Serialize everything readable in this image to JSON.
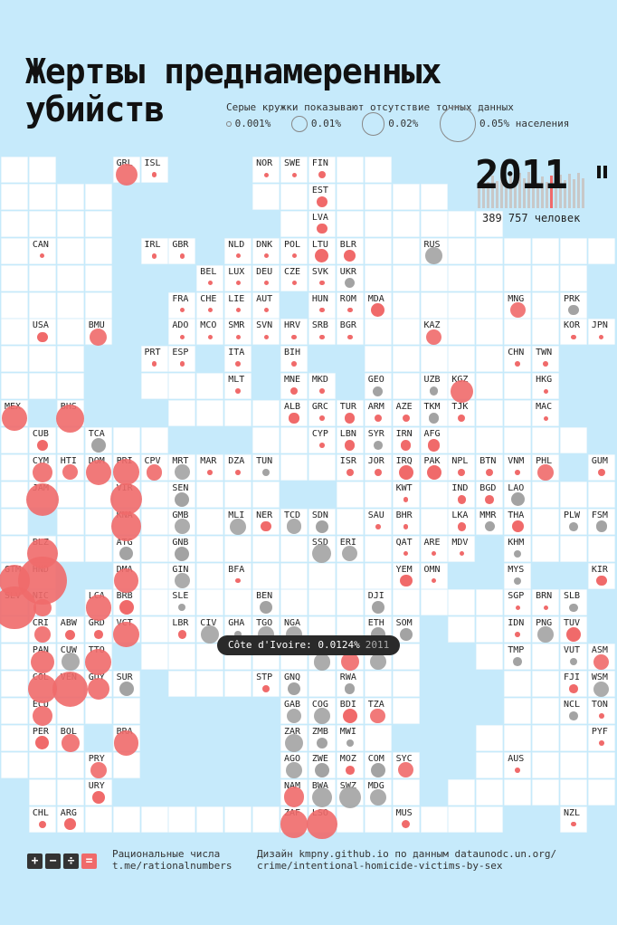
{
  "title_line1": "Жертвы преднамеренных",
  "title_line2": "убийств",
  "legend": {
    "note": "Серые кружки показывают отсутствие точных данных",
    "items": [
      {
        "label": "0.001%",
        "value": 0.001
      },
      {
        "label": "0.01%",
        "value": 0.01
      },
      {
        "label": "0.02%",
        "value": 0.02
      },
      {
        "label": "0.05% населения",
        "value": 0.05
      }
    ]
  },
  "year": "2011",
  "victims_total": "389 757 человек",
  "tooltip": {
    "text": "Côte d'Ivoire: 0.0124%",
    "year": "2011"
  },
  "footer": {
    "icons": [
      "+",
      "−",
      "÷",
      "="
    ],
    "icon_colors": [
      "#333333",
      "#333333",
      "#333333",
      "#f06a6a"
    ],
    "brand_line1": "Рациональные числа",
    "brand_line2": "t.me/rationalnumbers",
    "credit_line1": "Дизайн kmpny.github.io по данным dataunodc.un.org/",
    "credit_line2": "crime/intentional-homicide-victims-by-sex"
  },
  "colors": {
    "exact": "#f06a6a",
    "estimate": "#a3a3a3",
    "background": "#c6eafb"
  },
  "chart_data": {
    "type": "scatter",
    "unit": "% населения",
    "year": "2011",
    "countries": [
      {
        "code": "GRL",
        "v": 0.018,
        "g": false
      },
      {
        "code": "ISL",
        "v": 0.001,
        "g": false
      },
      {
        "code": "NOR",
        "v": 0.0,
        "g": false
      },
      {
        "code": "SWE",
        "v": 0.0,
        "g": false
      },
      {
        "code": "FIN",
        "v": 0.002,
        "g": false
      },
      {
        "code": "EST",
        "v": 0.005,
        "g": false
      },
      {
        "code": "LVA",
        "v": 0.004,
        "g": false
      },
      {
        "code": "CAN",
        "v": 0.0,
        "g": false
      },
      {
        "code": "IRL",
        "v": 0.001,
        "g": false
      },
      {
        "code": "GBR",
        "v": 0.001,
        "g": false
      },
      {
        "code": "NLD",
        "v": 0.0,
        "g": false
      },
      {
        "code": "DNK",
        "v": 0.0,
        "g": false
      },
      {
        "code": "POL",
        "v": 0.0,
        "g": false
      },
      {
        "code": "LTU",
        "v": 0.007,
        "g": false
      },
      {
        "code": "BLR",
        "v": 0.005,
        "g": false
      },
      {
        "code": "RUS",
        "v": 0.011,
        "g": true
      },
      {
        "code": "BEL",
        "v": 0.0,
        "g": false
      },
      {
        "code": "LUX",
        "v": 0.0,
        "g": false
      },
      {
        "code": "DEU",
        "v": 0.0,
        "g": false
      },
      {
        "code": "CZE",
        "v": 0.0,
        "g": false
      },
      {
        "code": "SVK",
        "v": 0.001,
        "g": false
      },
      {
        "code": "UKR",
        "v": 0.004,
        "g": true
      },
      {
        "code": "FRA",
        "v": 0.001,
        "g": false
      },
      {
        "code": "CHE",
        "v": 0.0,
        "g": false
      },
      {
        "code": "LIE",
        "v": 0.0,
        "g": false
      },
      {
        "code": "AUT",
        "v": 0.0,
        "g": false
      },
      {
        "code": "HUN",
        "v": 0.001,
        "g": false
      },
      {
        "code": "ROM",
        "v": 0.001,
        "g": false
      },
      {
        "code": "MDA",
        "v": 0.007,
        "g": false
      },
      {
        "code": "MNG",
        "v": 0.009,
        "g": false
      },
      {
        "code": "PRK",
        "v": 0.004,
        "g": true
      },
      {
        "code": "USA",
        "v": 0.004,
        "g": false
      },
      {
        "code": "BMU",
        "v": 0.012,
        "g": false
      },
      {
        "code": "ADO",
        "v": 0.0,
        "g": false
      },
      {
        "code": "MCO",
        "v": 0.0,
        "g": false
      },
      {
        "code": "SMR",
        "v": 0.0,
        "g": false
      },
      {
        "code": "SVN",
        "v": 0.0,
        "g": false
      },
      {
        "code": "HRV",
        "v": 0.001,
        "g": false
      },
      {
        "code": "SRB",
        "v": 0.001,
        "g": false
      },
      {
        "code": "BGR",
        "v": 0.001,
        "g": false
      },
      {
        "code": "KAZ",
        "v": 0.009,
        "g": false
      },
      {
        "code": "KOR",
        "v": 0.001,
        "g": false
      },
      {
        "code": "JPN",
        "v": 0.0,
        "g": false
      },
      {
        "code": "PRT",
        "v": 0.001,
        "g": false
      },
      {
        "code": "ESP",
        "v": 0.001,
        "g": false
      },
      {
        "code": "ITA",
        "v": 0.001,
        "g": false
      },
      {
        "code": "BIH",
        "v": 0.001,
        "g": false
      },
      {
        "code": "CHN",
        "v": 0.001,
        "g": false
      },
      {
        "code": "TWN",
        "v": 0.001,
        "g": false
      },
      {
        "code": "MLT",
        "v": 0.001,
        "g": false
      },
      {
        "code": "MNE",
        "v": 0.002,
        "g": false
      },
      {
        "code": "MKD",
        "v": 0.001,
        "g": false
      },
      {
        "code": "GEO",
        "v": 0.004,
        "g": true
      },
      {
        "code": "UZB",
        "v": 0.003,
        "g": true
      },
      {
        "code": "KGZ",
        "v": 0.02,
        "g": false
      },
      {
        "code": "HKG",
        "v": 0.0,
        "g": false
      },
      {
        "code": "MEX",
        "v": 0.024,
        "g": false
      },
      {
        "code": "BHS",
        "v": 0.03,
        "g": false
      },
      {
        "code": "ALB",
        "v": 0.004,
        "g": false
      },
      {
        "code": "GRC",
        "v": 0.001,
        "g": false
      },
      {
        "code": "TUR",
        "v": 0.004,
        "g": false
      },
      {
        "code": "ARM",
        "v": 0.002,
        "g": false
      },
      {
        "code": "AZE",
        "v": 0.002,
        "g": false
      },
      {
        "code": "TKM",
        "v": 0.004,
        "g": true
      },
      {
        "code": "TJK",
        "v": 0.002,
        "g": false
      },
      {
        "code": "MAC",
        "v": 0.0,
        "g": false
      },
      {
        "code": "CUB",
        "v": 0.005,
        "g": false
      },
      {
        "code": "TCA",
        "v": 0.008,
        "g": true
      },
      {
        "code": "CYP",
        "v": 0.001,
        "g": false
      },
      {
        "code": "LBN",
        "v": 0.004,
        "g": false
      },
      {
        "code": "SYR",
        "v": 0.003,
        "g": true
      },
      {
        "code": "IRN",
        "v": 0.004,
        "g": false
      },
      {
        "code": "AFG",
        "v": 0.006,
        "g": false
      },
      {
        "code": "CYM",
        "v": 0.015,
        "g": false
      },
      {
        "code": "HTI",
        "v": 0.009,
        "g": false
      },
      {
        "code": "DOM",
        "v": 0.025,
        "g": false
      },
      {
        "code": "PRI",
        "v": 0.026,
        "g": false
      },
      {
        "code": "CPV",
        "v": 0.01,
        "g": false
      },
      {
        "code": "MRT",
        "v": 0.009,
        "g": true
      },
      {
        "code": "MAR",
        "v": 0.001,
        "g": false
      },
      {
        "code": "DZA",
        "v": 0.001,
        "g": false
      },
      {
        "code": "TUN",
        "v": 0.002,
        "g": true
      },
      {
        "code": "ISR",
        "v": 0.002,
        "g": false
      },
      {
        "code": "JOR",
        "v": 0.002,
        "g": false
      },
      {
        "code": "IRQ",
        "v": 0.008,
        "g": false
      },
      {
        "code": "PAK",
        "v": 0.008,
        "g": false
      },
      {
        "code": "NPL",
        "v": 0.002,
        "g": false
      },
      {
        "code": "BTN",
        "v": 0.002,
        "g": false
      },
      {
        "code": "VNM",
        "v": 0.001,
        "g": false
      },
      {
        "code": "PHL",
        "v": 0.01,
        "g": false
      },
      {
        "code": "GUM",
        "v": 0.002,
        "g": false
      },
      {
        "code": "JAM",
        "v": 0.041,
        "g": false
      },
      {
        "code": "VIR",
        "v": 0.039,
        "g": false
      },
      {
        "code": "SEN",
        "v": 0.008,
        "g": true
      },
      {
        "code": "KWT",
        "v": 0.001,
        "g": false
      },
      {
        "code": "LAO",
        "v": 0.007,
        "g": true
      },
      {
        "code": "IND",
        "v": 0.003,
        "g": false
      },
      {
        "code": "BGD",
        "v": 0.003,
        "g": false
      },
      {
        "code": "KNA",
        "v": 0.034,
        "g": false
      },
      {
        "code": "GMB",
        "v": 0.009,
        "g": true
      },
      {
        "code": "MLI",
        "v": 0.01,
        "g": true
      },
      {
        "code": "NER",
        "v": 0.004,
        "g": false
      },
      {
        "code": "TCD",
        "v": 0.009,
        "g": true
      },
      {
        "code": "SDN",
        "v": 0.006,
        "g": true
      },
      {
        "code": "SAU",
        "v": 0.001,
        "g": false
      },
      {
        "code": "BHR",
        "v": 0.001,
        "g": false
      },
      {
        "code": "LKA",
        "v": 0.003,
        "g": false
      },
      {
        "code": "MMR",
        "v": 0.004,
        "g": true
      },
      {
        "code": "THA",
        "v": 0.005,
        "g": false
      },
      {
        "code": "PLW",
        "v": 0.003,
        "g": true
      },
      {
        "code": "FSM",
        "v": 0.005,
        "g": true
      },
      {
        "code": "BLZ",
        "v": 0.035,
        "g": false
      },
      {
        "code": "ATG",
        "v": 0.007,
        "g": true
      },
      {
        "code": "GNB",
        "v": 0.008,
        "g": true
      },
      {
        "code": "SSD",
        "v": 0.014,
        "g": true
      },
      {
        "code": "ERI",
        "v": 0.009,
        "g": true
      },
      {
        "code": "QAT",
        "v": 0.0,
        "g": false
      },
      {
        "code": "ARE",
        "v": 0.001,
        "g": false
      },
      {
        "code": "MDV",
        "v": 0.001,
        "g": false
      },
      {
        "code": "KHM",
        "v": 0.002,
        "g": true
      },
      {
        "code": "GTM",
        "v": 0.038,
        "g": false
      },
      {
        "code": "HND",
        "v": 0.09,
        "g": false
      },
      {
        "code": "DMA",
        "v": 0.022,
        "g": false
      },
      {
        "code": "GIN",
        "v": 0.009,
        "g": true
      },
      {
        "code": "BFA",
        "v": 0.001,
        "g": false
      },
      {
        "code": "YEM",
        "v": 0.006,
        "g": false
      },
      {
        "code": "OMN",
        "v": 0.001,
        "g": false
      },
      {
        "code": "MYS",
        "v": 0.002,
        "g": true
      },
      {
        "code": "KIR",
        "v": 0.004,
        "g": false
      },
      {
        "code": "SLV",
        "v": 0.07,
        "g": false
      },
      {
        "code": "NIC",
        "v": 0.012,
        "g": false
      },
      {
        "code": "LCA",
        "v": 0.025,
        "g": false
      },
      {
        "code": "BRB",
        "v": 0.008,
        "g": false
      },
      {
        "code": "SLE",
        "v": 0.002,
        "g": true
      },
      {
        "code": "BEN",
        "v": 0.006,
        "g": true
      },
      {
        "code": "DJI",
        "v": 0.006,
        "g": true
      },
      {
        "code": "SGP",
        "v": 0.0,
        "g": false
      },
      {
        "code": "BRN",
        "v": 0.0,
        "g": false
      },
      {
        "code": "SLB",
        "v": 0.003,
        "g": true
      },
      {
        "code": "CRI",
        "v": 0.01,
        "g": false
      },
      {
        "code": "ABW",
        "v": 0.004,
        "g": false
      },
      {
        "code": "GRD",
        "v": 0.003,
        "g": false
      },
      {
        "code": "VCT",
        "v": 0.025,
        "g": false
      },
      {
        "code": "LBR",
        "v": 0.003,
        "g": false
      },
      {
        "code": "CIV",
        "v": 0.0124,
        "g": true
      },
      {
        "code": "GHA",
        "v": 0.002,
        "g": true
      },
      {
        "code": "TGO",
        "v": 0.01,
        "g": true
      },
      {
        "code": "NGA",
        "v": 0.01,
        "g": true
      },
      {
        "code": "ETH",
        "v": 0.008,
        "g": true
      },
      {
        "code": "SOM",
        "v": 0.006,
        "g": true
      },
      {
        "code": "IDN",
        "v": 0.001,
        "g": false
      },
      {
        "code": "PNG",
        "v": 0.01,
        "g": true
      },
      {
        "code": "TUV",
        "v": 0.008,
        "g": false
      },
      {
        "code": "PAN",
        "v": 0.02,
        "g": false
      },
      {
        "code": "CUW",
        "v": 0.013,
        "g": true
      },
      {
        "code": "TTO",
        "v": 0.026,
        "g": false
      },
      {
        "code": "CMR",
        "v": 0.011,
        "g": true
      },
      {
        "code": "COD",
        "v": 0.013,
        "g": false
      },
      {
        "code": "CAF",
        "v": 0.01,
        "g": true
      },
      {
        "code": "TMP",
        "v": 0.003,
        "g": true
      },
      {
        "code": "VUT",
        "v": 0.002,
        "g": true
      },
      {
        "code": "ASM",
        "v": 0.009,
        "g": false
      },
      {
        "code": "COL",
        "v": 0.033,
        "g": false
      },
      {
        "code": "VEN",
        "v": 0.048,
        "g": false
      },
      {
        "code": "GUY",
        "v": 0.018,
        "g": false
      },
      {
        "code": "SUR",
        "v": 0.008,
        "g": true
      },
      {
        "code": "STP",
        "v": 0.002,
        "g": false
      },
      {
        "code": "GNQ",
        "v": 0.006,
        "g": true
      },
      {
        "code": "RWA",
        "v": 0.004,
        "g": true
      },
      {
        "code": "FJI",
        "v": 0.003,
        "g": false
      },
      {
        "code": "WSM",
        "v": 0.009,
        "g": true
      },
      {
        "code": "ECU",
        "v": 0.015,
        "g": false
      },
      {
        "code": "GAB",
        "v": 0.009,
        "g": true
      },
      {
        "code": "COG",
        "v": 0.01,
        "g": true
      },
      {
        "code": "BDI",
        "v": 0.008,
        "g": false
      },
      {
        "code": "TZA",
        "v": 0.009,
        "g": false
      },
      {
        "code": "NCL",
        "v": 0.003,
        "g": true
      },
      {
        "code": "TON",
        "v": 0.001,
        "g": false
      },
      {
        "code": "PER",
        "v": 0.007,
        "g": false
      },
      {
        "code": "BOL",
        "v": 0.012,
        "g": false
      },
      {
        "code": "BRA",
        "v": 0.024,
        "g": false
      },
      {
        "code": "ZAR",
        "v": 0.013,
        "g": true
      },
      {
        "code": "ZMB",
        "v": 0.005,
        "g": true
      },
      {
        "code": "MWI",
        "v": 0.002,
        "g": true
      },
      {
        "code": "PYF",
        "v": 0.001,
        "g": false
      },
      {
        "code": "PRY",
        "v": 0.01,
        "g": false
      },
      {
        "code": "AGO",
        "v": 0.01,
        "g": true
      },
      {
        "code": "ZWE",
        "v": 0.008,
        "g": true
      },
      {
        "code": "MOZ",
        "v": 0.003,
        "g": false
      },
      {
        "code": "COM",
        "v": 0.008,
        "g": true
      },
      {
        "code": "SYC",
        "v": 0.009,
        "g": false
      },
      {
        "code": "AUS",
        "v": 0.001,
        "g": false
      },
      {
        "code": "URY",
        "v": 0.006,
        "g": false
      },
      {
        "code": "NAM",
        "v": 0.016,
        "g": false
      },
      {
        "code": "BWA",
        "v": 0.015,
        "g": true
      },
      {
        "code": "SWZ",
        "v": 0.018,
        "g": true
      },
      {
        "code": "MDG",
        "v": 0.01,
        "g": true
      },
      {
        "code": "CHL",
        "v": 0.002,
        "g": false
      },
      {
        "code": "ARG",
        "v": 0.005,
        "g": false
      },
      {
        "code": "ZAF",
        "v": 0.03,
        "g": false
      },
      {
        "code": "LSO",
        "v": 0.035,
        "g": false
      },
      {
        "code": "MUS",
        "v": 0.003,
        "g": false
      },
      {
        "code": "NZL",
        "v": 0.001,
        "g": false
      }
    ]
  }
}
